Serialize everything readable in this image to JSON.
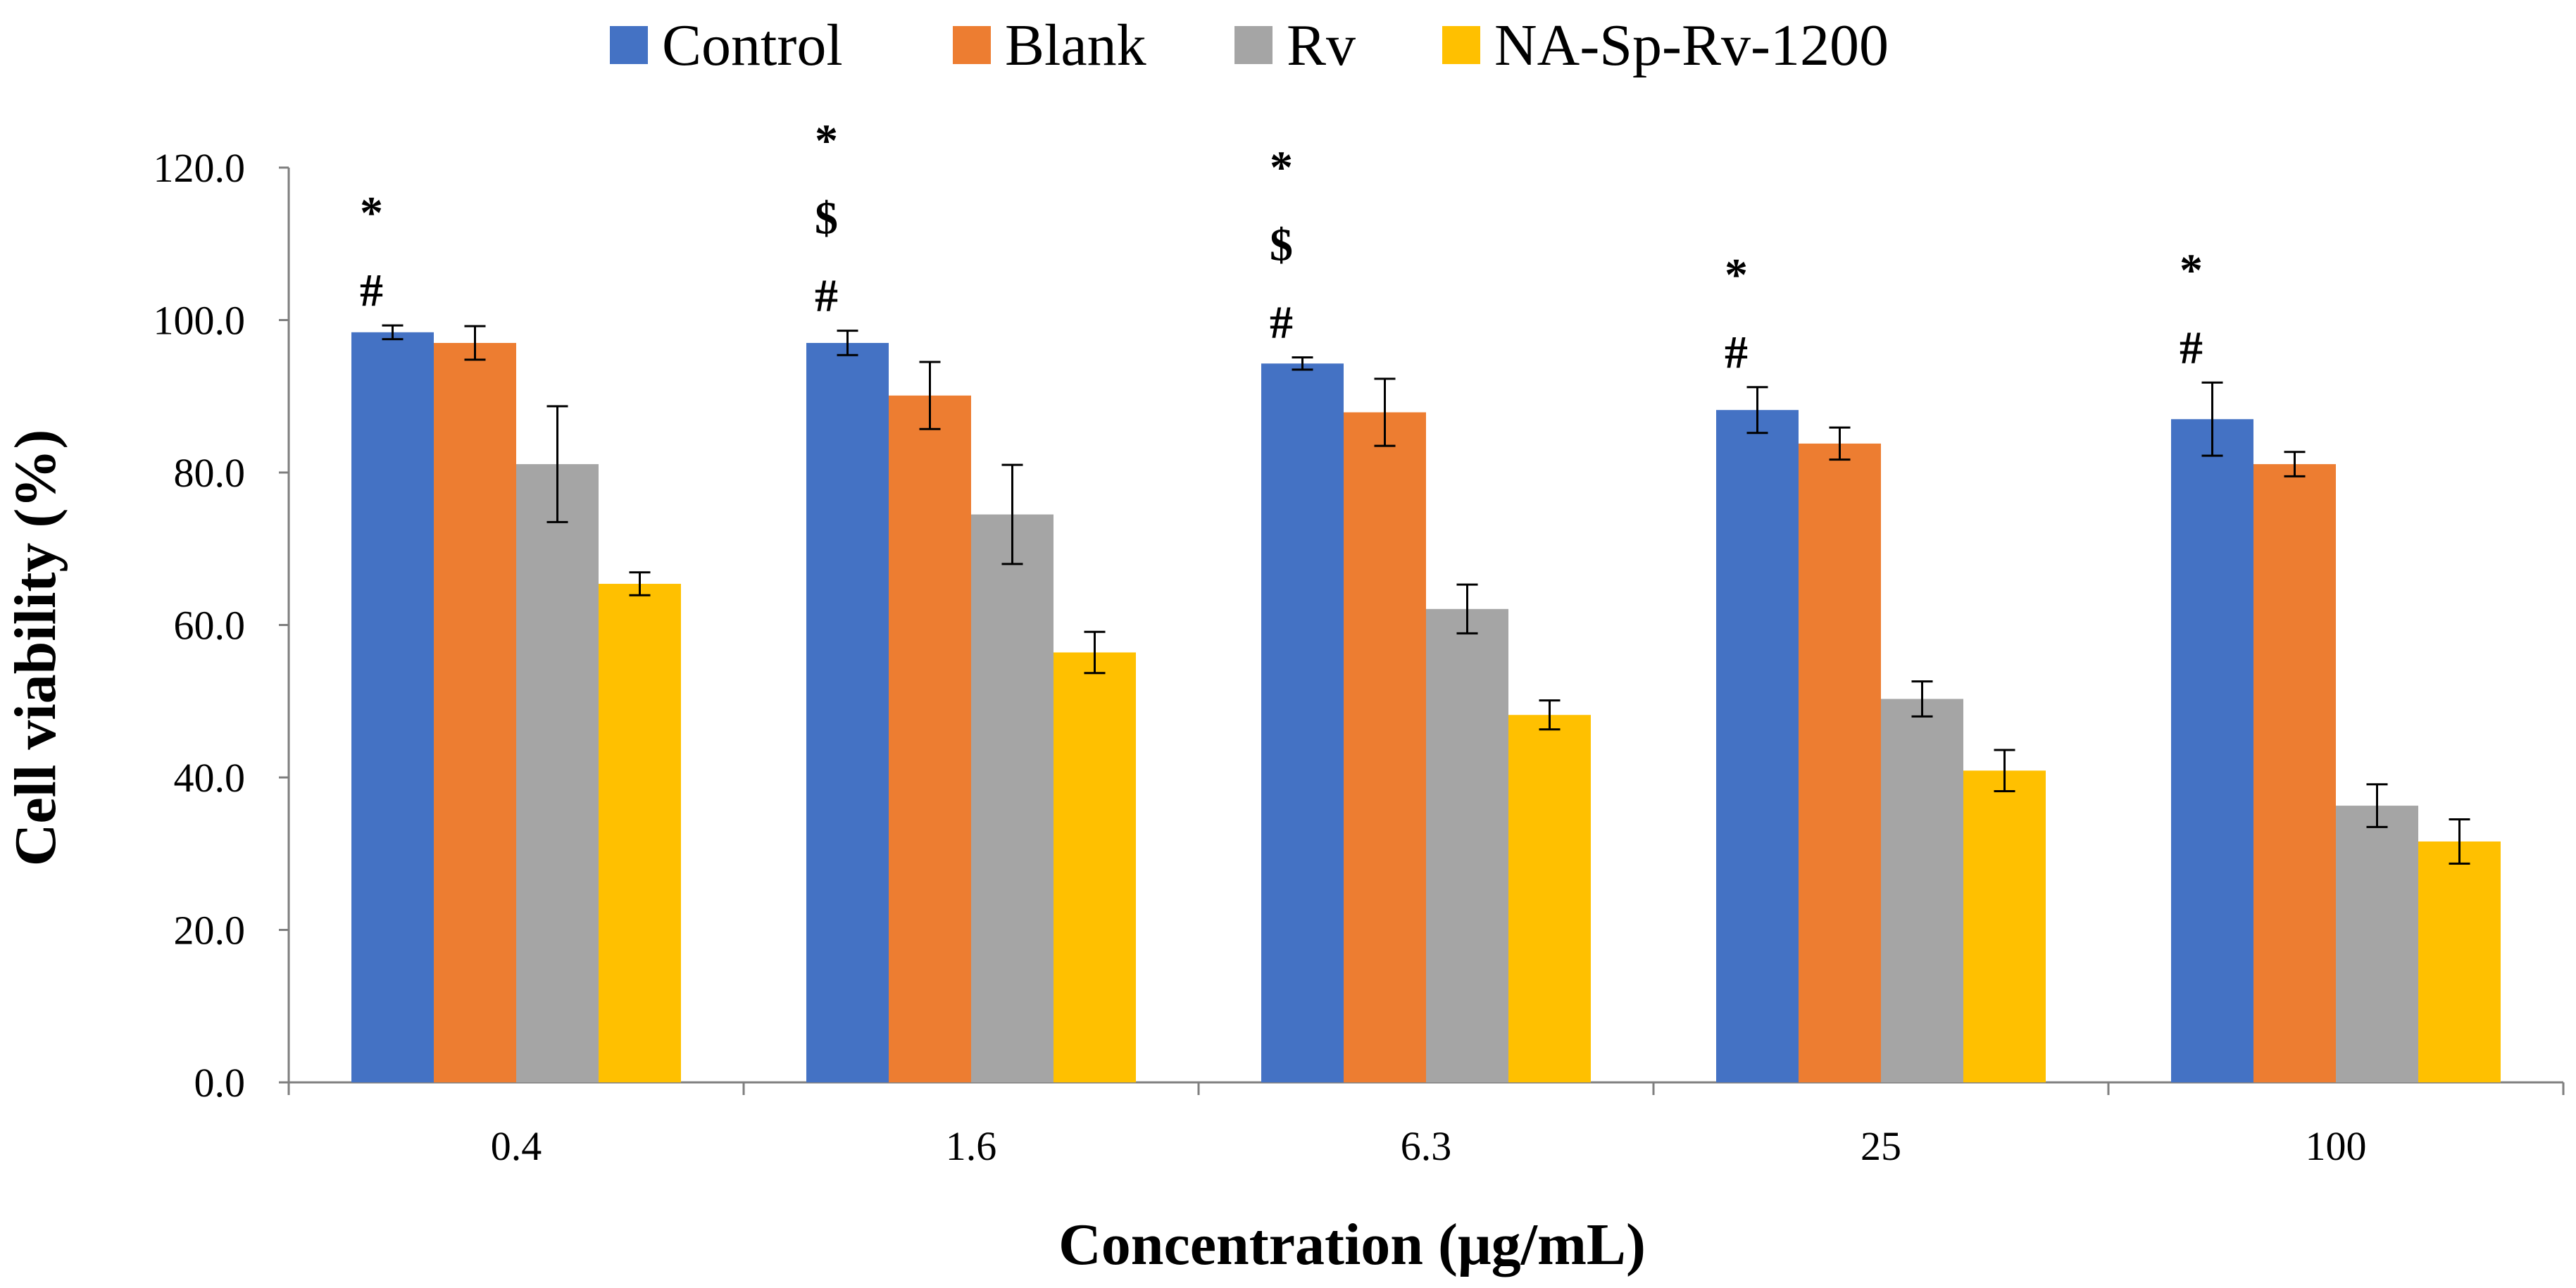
{
  "chart_data": {
    "type": "bar",
    "title": "",
    "xlabel": "Concentration (μg/mL)",
    "ylabel": "Cell viability (%)",
    "ylim": [
      0,
      120
    ],
    "yticks": [
      "0.0",
      "20.0",
      "40.0",
      "60.0",
      "80.0",
      "100.0",
      "120.0"
    ],
    "categories": [
      "0.4",
      "1.6",
      "6.3",
      "25",
      "100"
    ],
    "series": [
      {
        "name": "Control",
        "color": "#4472C4",
        "values": [
          98.4,
          97.0,
          94.3,
          88.2,
          87.0
        ],
        "errors": [
          0.9,
          1.6,
          0.8,
          3.0,
          4.8
        ]
      },
      {
        "name": "Blank",
        "color": "#ED7D31",
        "values": [
          97.0,
          90.1,
          87.9,
          83.8,
          81.1
        ],
        "errors": [
          2.2,
          4.4,
          4.4,
          2.1,
          1.6
        ]
      },
      {
        "name": "Rv",
        "color": "#A5A5A5",
        "values": [
          81.1,
          74.5,
          62.1,
          50.3,
          36.3
        ],
        "errors": [
          7.6,
          6.5,
          3.2,
          2.3,
          2.8
        ]
      },
      {
        "name": "NA-Sp-Rv-1200",
        "color": "#FFC000",
        "values": [
          65.4,
          56.4,
          48.2,
          40.9,
          31.6
        ],
        "errors": [
          1.5,
          2.7,
          1.9,
          2.7,
          2.9
        ]
      }
    ],
    "annotations": [
      [
        "*",
        "#"
      ],
      [
        "*",
        "$",
        "#"
      ],
      [
        "*",
        "$",
        "#"
      ],
      [
        "*",
        "#"
      ],
      [
        "*",
        "#"
      ]
    ],
    "legend_position": "top",
    "grid": false
  }
}
